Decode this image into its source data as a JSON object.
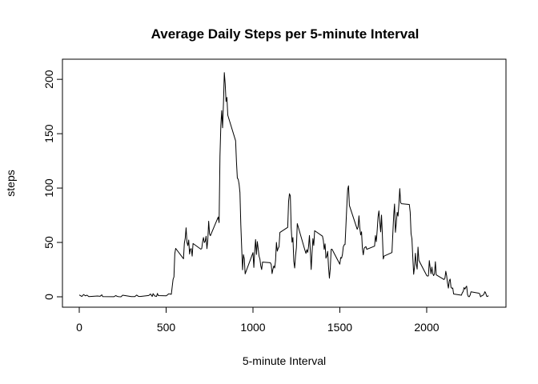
{
  "chart_data": {
    "type": "line",
    "title": "Average Daily Steps per 5-minute Interval",
    "xlabel": "5-minute Interval",
    "ylabel": "steps",
    "xlim": [
      0,
      2355
    ],
    "ylim": [
      0,
      206
    ],
    "x_ticks": [
      0,
      500,
      1000,
      1500,
      2000
    ],
    "y_ticks": [
      0,
      50,
      100,
      150,
      200
    ],
    "grid": false,
    "series": [
      {
        "color": "#000000",
        "points": [
          [
            0,
            1.7
          ],
          [
            15,
            0.3
          ],
          [
            25,
            2.1
          ],
          [
            35,
            0.9
          ],
          [
            45,
            1.5
          ],
          [
            55,
            0.2
          ],
          [
            105,
            0.7
          ],
          [
            120,
            0.5
          ],
          [
            130,
            1.8
          ],
          [
            135,
            0.2
          ],
          [
            200,
            0.1
          ],
          [
            210,
            1.1
          ],
          [
            220,
            0.3
          ],
          [
            230,
            0.1
          ],
          [
            240,
            0.0
          ],
          [
            250,
            1.5
          ],
          [
            300,
            0.2
          ],
          [
            320,
            0.2
          ],
          [
            330,
            1.6
          ],
          [
            340,
            0.5
          ],
          [
            350,
            0.3
          ],
          [
            400,
            1.2
          ],
          [
            410,
            2.6
          ],
          [
            420,
            0.3
          ],
          [
            425,
            2.9
          ],
          [
            435,
            0.7
          ],
          [
            445,
            0.4
          ],
          [
            450,
            3.1
          ],
          [
            455,
            1.1
          ],
          [
            500,
            0.9
          ],
          [
            505,
            1.4
          ],
          [
            515,
            2.8
          ],
          [
            525,
            2.5
          ],
          [
            530,
            2.3
          ],
          [
            540,
            16.0
          ],
          [
            545,
            18.3
          ],
          [
            550,
            39.5
          ],
          [
            555,
            44.5
          ],
          [
            600,
            35.0
          ],
          [
            605,
            49.3
          ],
          [
            610,
            53.8
          ],
          [
            615,
            63.5
          ],
          [
            620,
            50.0
          ],
          [
            625,
            47.1
          ],
          [
            630,
            52.2
          ],
          [
            635,
            39.3
          ],
          [
            640,
            44.0
          ],
          [
            645,
            44.2
          ],
          [
            650,
            37.4
          ],
          [
            655,
            49.0
          ],
          [
            700,
            43.8
          ],
          [
            705,
            44.4
          ],
          [
            710,
            50.5
          ],
          [
            715,
            54.5
          ],
          [
            720,
            49.9
          ],
          [
            725,
            51.0
          ],
          [
            730,
            55.7
          ],
          [
            735,
            44.3
          ],
          [
            740,
            52.3
          ],
          [
            745,
            69.5
          ],
          [
            750,
            57.8
          ],
          [
            755,
            56.2
          ],
          [
            800,
            73.4
          ],
          [
            805,
            68.2
          ],
          [
            810,
            129.4
          ],
          [
            815,
            157.5
          ],
          [
            820,
            171.2
          ],
          [
            825,
            155.4
          ],
          [
            830,
            177.3
          ],
          [
            835,
            206.2
          ],
          [
            840,
            195.9
          ],
          [
            845,
            179.6
          ],
          [
            850,
            183.4
          ],
          [
            855,
            167.0
          ],
          [
            900,
            143.5
          ],
          [
            905,
            124.0
          ],
          [
            910,
            109.1
          ],
          [
            915,
            108.1
          ],
          [
            920,
            103.7
          ],
          [
            925,
            95.9
          ],
          [
            930,
            66.2
          ],
          [
            935,
            45.2
          ],
          [
            940,
            24.8
          ],
          [
            945,
            38.8
          ],
          [
            950,
            34.9
          ],
          [
            955,
            21.1
          ],
          [
            1000,
            40.6
          ],
          [
            1005,
            27.0
          ],
          [
            1010,
            42.4
          ],
          [
            1015,
            52.7
          ],
          [
            1020,
            38.9
          ],
          [
            1025,
            50.8
          ],
          [
            1030,
            44.3
          ],
          [
            1035,
            37.4
          ],
          [
            1040,
            34.7
          ],
          [
            1045,
            28.3
          ],
          [
            1050,
            25.1
          ],
          [
            1055,
            31.9
          ],
          [
            1100,
            31.4
          ],
          [
            1105,
            29.7
          ],
          [
            1110,
            21.3
          ],
          [
            1115,
            25.5
          ],
          [
            1120,
            28.4
          ],
          [
            1125,
            26.5
          ],
          [
            1130,
            33.4
          ],
          [
            1135,
            50.0
          ],
          [
            1140,
            42.0
          ],
          [
            1145,
            44.6
          ],
          [
            1150,
            46.0
          ],
          [
            1155,
            59.2
          ],
          [
            1200,
            63.9
          ],
          [
            1205,
            87.7
          ],
          [
            1210,
            94.8
          ],
          [
            1215,
            92.8
          ],
          [
            1220,
            63.4
          ],
          [
            1225,
            50.2
          ],
          [
            1230,
            54.5
          ],
          [
            1235,
            32.4
          ],
          [
            1240,
            26.5
          ],
          [
            1245,
            37.7
          ],
          [
            1250,
            45.1
          ],
          [
            1255,
            67.3
          ],
          [
            1300,
            42.3
          ],
          [
            1305,
            39.9
          ],
          [
            1310,
            43.3
          ],
          [
            1315,
            40.9
          ],
          [
            1320,
            46.2
          ],
          [
            1325,
            56.4
          ],
          [
            1330,
            42.8
          ],
          [
            1335,
            25.1
          ],
          [
            1340,
            39.9
          ],
          [
            1345,
            53.5
          ],
          [
            1350,
            47.3
          ],
          [
            1355,
            60.8
          ],
          [
            1400,
            55.8
          ],
          [
            1405,
            51.9
          ],
          [
            1410,
            43.6
          ],
          [
            1415,
            48.7
          ],
          [
            1420,
            35.5
          ],
          [
            1425,
            37.5
          ],
          [
            1430,
            41.8
          ],
          [
            1435,
            27.5
          ],
          [
            1440,
            17.1
          ],
          [
            1445,
            26.1
          ],
          [
            1450,
            43.6
          ],
          [
            1455,
            43.8
          ],
          [
            1500,
            30.0
          ],
          [
            1505,
            36.1
          ],
          [
            1510,
            35.5
          ],
          [
            1515,
            38.8
          ],
          [
            1520,
            45.9
          ],
          [
            1525,
            47.8
          ],
          [
            1530,
            48.1
          ],
          [
            1535,
            65.3
          ],
          [
            1540,
            82.9
          ],
          [
            1545,
            98.7
          ],
          [
            1550,
            102.1
          ],
          [
            1555,
            84.0
          ],
          [
            1600,
            62.1
          ],
          [
            1605,
            64.1
          ],
          [
            1610,
            74.5
          ],
          [
            1615,
            63.2
          ],
          [
            1620,
            56.9
          ],
          [
            1625,
            59.8
          ],
          [
            1630,
            43.9
          ],
          [
            1635,
            38.6
          ],
          [
            1640,
            44.7
          ],
          [
            1645,
            45.5
          ],
          [
            1650,
            46.2
          ],
          [
            1655,
            43.7
          ],
          [
            1700,
            46.6
          ],
          [
            1705,
            56.3
          ],
          [
            1710,
            50.7
          ],
          [
            1715,
            61.2
          ],
          [
            1720,
            73.4
          ],
          [
            1725,
            79.0
          ],
          [
            1730,
            68.9
          ],
          [
            1735,
            59.7
          ],
          [
            1740,
            75.1
          ],
          [
            1745,
            56.5
          ],
          [
            1750,
            34.8
          ],
          [
            1755,
            37.5
          ],
          [
            1800,
            40.7
          ],
          [
            1805,
            58.0
          ],
          [
            1810,
            74.7
          ],
          [
            1815,
            85.3
          ],
          [
            1820,
            59.3
          ],
          [
            1825,
            67.8
          ],
          [
            1830,
            77.7
          ],
          [
            1835,
            74.2
          ],
          [
            1840,
            85.3
          ],
          [
            1845,
            99.5
          ],
          [
            1850,
            86.6
          ],
          [
            1855,
            85.6
          ],
          [
            1900,
            84.9
          ],
          [
            1905,
            77.8
          ],
          [
            1910,
            58.0
          ],
          [
            1915,
            53.4
          ],
          [
            1920,
            36.3
          ],
          [
            1925,
            20.7
          ],
          [
            1930,
            27.4
          ],
          [
            1935,
            40.0
          ],
          [
            1940,
            30.2
          ],
          [
            1945,
            25.5
          ],
          [
            1950,
            45.7
          ],
          [
            1955,
            33.5
          ],
          [
            2000,
            19.6
          ],
          [
            2005,
            19.0
          ],
          [
            2010,
            19.3
          ],
          [
            2015,
            33.3
          ],
          [
            2020,
            26.8
          ],
          [
            2025,
            21.2
          ],
          [
            2030,
            27.3
          ],
          [
            2035,
            21.3
          ],
          [
            2040,
            19.5
          ],
          [
            2045,
            21.3
          ],
          [
            2050,
            32.3
          ],
          [
            2055,
            20.2
          ],
          [
            2100,
            15.9
          ],
          [
            2105,
            17.2
          ],
          [
            2110,
            23.5
          ],
          [
            2115,
            19.2
          ],
          [
            2120,
            12.5
          ],
          [
            2125,
            8.0
          ],
          [
            2130,
            14.7
          ],
          [
            2135,
            16.3
          ],
          [
            2140,
            8.7
          ],
          [
            2145,
            7.8
          ],
          [
            2150,
            8.1
          ],
          [
            2155,
            2.6
          ],
          [
            2200,
            1.5
          ],
          [
            2205,
            3.7
          ],
          [
            2210,
            4.8
          ],
          [
            2215,
            8.5
          ],
          [
            2220,
            7.1
          ],
          [
            2225,
            8.7
          ],
          [
            2230,
            9.8
          ],
          [
            2235,
            2.2
          ],
          [
            2240,
            0.3
          ],
          [
            2245,
            0.1
          ],
          [
            2250,
            1.6
          ],
          [
            2255,
            4.6
          ],
          [
            2300,
            3.3
          ],
          [
            2305,
            2.8
          ],
          [
            2310,
            0.0
          ],
          [
            2315,
            0.8
          ],
          [
            2320,
            1.0
          ],
          [
            2325,
            1.6
          ],
          [
            2330,
            2.6
          ],
          [
            2335,
            4.7
          ],
          [
            2340,
            3.3
          ],
          [
            2345,
            0.6
          ],
          [
            2350,
            0.2
          ],
          [
            2355,
            1.1
          ]
        ]
      }
    ]
  }
}
